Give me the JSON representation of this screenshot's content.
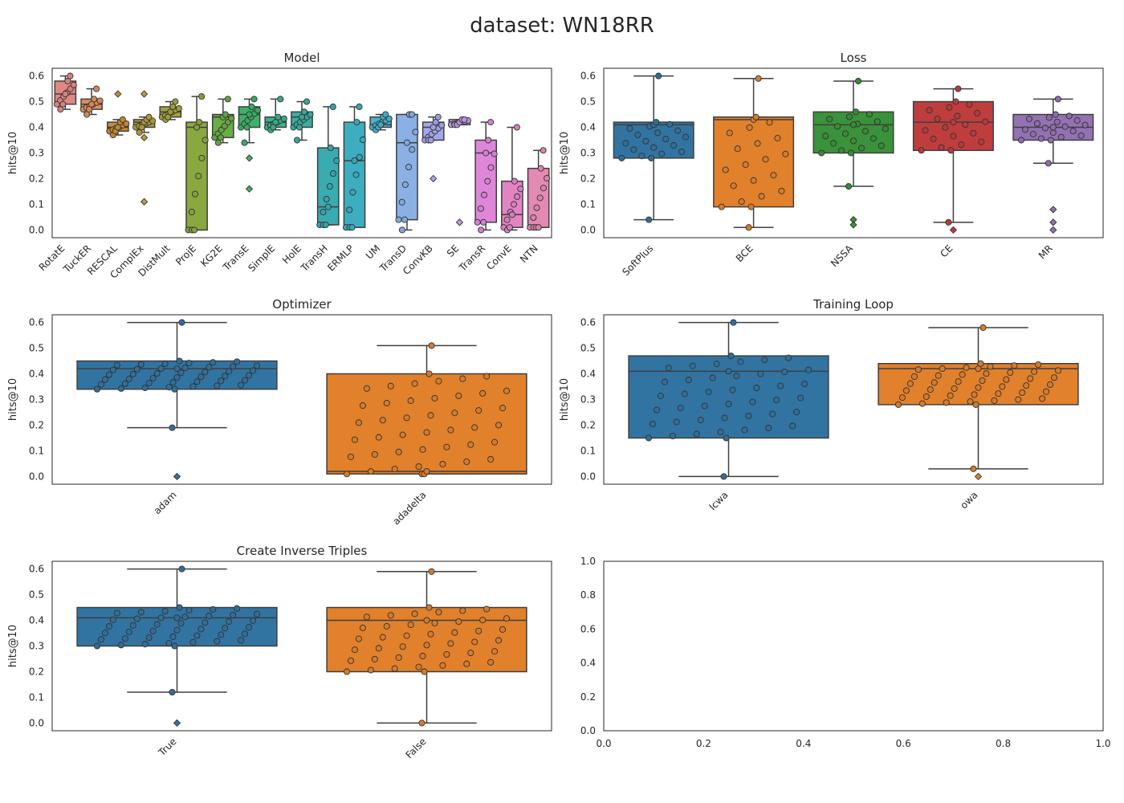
{
  "figure": {
    "title": "dataset: WN18RR"
  },
  "chart_data": [
    {
      "type": "box",
      "title": "Model",
      "ylabel": "hits@10",
      "ylim": [
        -0.03,
        0.63
      ],
      "yticks": [
        "0.0",
        "0.1",
        "0.2",
        "0.3",
        "0.4",
        "0.5",
        "0.6"
      ],
      "categories": [
        "RotatE",
        "TuckER",
        "RESCAL",
        "ComplEx",
        "DistMult",
        "ProjE",
        "KG2E",
        "TransE",
        "SimplE",
        "HolE",
        "TransH",
        "ERMLP",
        "UM",
        "TransD",
        "ConvKB",
        "SE",
        "TransR",
        "ConvE",
        "NTN"
      ],
      "colors": [
        "#e08883",
        "#e08e5e",
        "#c98c33",
        "#b49d3d",
        "#a4a33b",
        "#8ba840",
        "#6aac45",
        "#3db16a",
        "#3bb190",
        "#3aaea2",
        "#3aabb1",
        "#3caec0",
        "#48b3cf",
        "#8ab0e6",
        "#a4a6ec",
        "#be9ae6",
        "#df86db",
        "#e284c4",
        "#e38ab2"
      ],
      "boxes": [
        {
          "min": 0.47,
          "q1": 0.49,
          "median": 0.53,
          "q3": 0.58,
          "max": 0.6
        },
        {
          "min": 0.45,
          "q1": 0.47,
          "median": 0.49,
          "q3": 0.51,
          "max": 0.55
        },
        {
          "min": 0.37,
          "q1": 0.385,
          "median": 0.4,
          "q3": 0.42,
          "max": 0.43
        },
        {
          "min": 0.38,
          "q1": 0.4,
          "median": 0.42,
          "q3": 0.43,
          "max": 0.44
        },
        {
          "min": 0.43,
          "q1": 0.44,
          "median": 0.46,
          "q3": 0.48,
          "max": 0.5
        },
        {
          "min": 0.0,
          "q1": 0.0,
          "median": 0.4,
          "q3": 0.42,
          "max": 0.52
        },
        {
          "min": 0.34,
          "q1": 0.36,
          "median": 0.44,
          "q3": 0.45,
          "max": 0.51
        },
        {
          "min": 0.34,
          "q1": 0.4,
          "median": 0.45,
          "q3": 0.48,
          "max": 0.51
        },
        {
          "min": 0.39,
          "q1": 0.4,
          "median": 0.42,
          "q3": 0.44,
          "max": 0.51
        },
        {
          "min": 0.35,
          "q1": 0.4,
          "median": 0.44,
          "q3": 0.46,
          "max": 0.5
        },
        {
          "min": 0.02,
          "q1": 0.02,
          "median": 0.09,
          "q3": 0.32,
          "max": 0.48
        },
        {
          "min": 0.01,
          "q1": 0.01,
          "median": 0.27,
          "q3": 0.42,
          "max": 0.48
        },
        {
          "min": 0.39,
          "q1": 0.4,
          "median": 0.41,
          "q3": 0.44,
          "max": 0.45
        },
        {
          "min": 0.0,
          "q1": 0.04,
          "median": 0.34,
          "q3": 0.45,
          "max": 0.45
        },
        {
          "min": 0.35,
          "q1": 0.35,
          "median": 0.4,
          "q3": 0.42,
          "max": 0.44
        },
        {
          "min": 0.41,
          "q1": 0.41,
          "median": 0.42,
          "q3": 0.43,
          "max": 0.43
        },
        {
          "min": 0.0,
          "q1": 0.03,
          "median": 0.3,
          "q3": 0.35,
          "max": 0.42
        },
        {
          "min": 0.0,
          "q1": 0.01,
          "median": 0.06,
          "q3": 0.19,
          "max": 0.4
        },
        {
          "min": 0.01,
          "q1": 0.01,
          "median": 0.01,
          "q3": 0.24,
          "max": 0.31
        }
      ],
      "outliers": [
        [],
        [],
        [
          0.53
        ],
        [
          0.53,
          0.36,
          0.11
        ],
        [],
        [],
        [],
        [
          0.28,
          0.16
        ],
        [],
        [],
        [],
        [],
        [],
        [],
        [
          0.2
        ],
        [
          0.03
        ],
        [],
        [],
        []
      ]
    },
    {
      "type": "box",
      "title": "Loss",
      "ylabel": "hits@10",
      "ylim": [
        -0.03,
        0.63
      ],
      "yticks": [
        "0.0",
        "0.1",
        "0.2",
        "0.3",
        "0.4",
        "0.5",
        "0.6"
      ],
      "categories": [
        "SoftPlus",
        "BCE",
        "NSSA",
        "CE",
        "MR"
      ],
      "colors": [
        "#3274a1",
        "#e1812c",
        "#3a923a",
        "#c03d3e",
        "#9372b2"
      ],
      "boxes": [
        {
          "min": 0.04,
          "q1": 0.28,
          "median": 0.41,
          "q3": 0.42,
          "max": 0.6
        },
        {
          "min": 0.01,
          "q1": 0.09,
          "median": 0.43,
          "q3": 0.44,
          "max": 0.59
        },
        {
          "min": 0.17,
          "q1": 0.3,
          "median": 0.41,
          "q3": 0.46,
          "max": 0.58
        },
        {
          "min": 0.03,
          "q1": 0.31,
          "median": 0.42,
          "q3": 0.5,
          "max": 0.55
        },
        {
          "min": 0.26,
          "q1": 0.35,
          "median": 0.4,
          "q3": 0.45,
          "max": 0.51
        }
      ],
      "outliers": [
        [],
        [],
        [
          0.04,
          0.02
        ],
        [
          0.0
        ],
        [
          0.08,
          0.03,
          0.0
        ]
      ]
    },
    {
      "type": "box",
      "title": "Optimizer",
      "ylabel": "hits@10",
      "ylim": [
        -0.03,
        0.63
      ],
      "yticks": [
        "0.0",
        "0.1",
        "0.2",
        "0.3",
        "0.4",
        "0.5",
        "0.6"
      ],
      "categories": [
        "adam",
        "adadelta"
      ],
      "colors": [
        "#3274a1",
        "#e1812c"
      ],
      "boxes": [
        {
          "min": 0.19,
          "q1": 0.34,
          "median": 0.42,
          "q3": 0.45,
          "max": 0.6
        },
        {
          "min": 0.01,
          "q1": 0.01,
          "median": 0.02,
          "q3": 0.4,
          "max": 0.51
        }
      ],
      "outliers": [
        [
          0.0
        ],
        []
      ]
    },
    {
      "type": "box",
      "title": "Training Loop",
      "ylabel": "hits@10",
      "ylim": [
        -0.03,
        0.63
      ],
      "yticks": [
        "0.0",
        "0.1",
        "0.2",
        "0.3",
        "0.4",
        "0.5",
        "0.6"
      ],
      "categories": [
        "lcwa",
        "owa"
      ],
      "colors": [
        "#3274a1",
        "#e1812c"
      ],
      "boxes": [
        {
          "min": 0.0,
          "q1": 0.15,
          "median": 0.41,
          "q3": 0.47,
          "max": 0.6
        },
        {
          "min": 0.03,
          "q1": 0.28,
          "median": 0.42,
          "q3": 0.44,
          "max": 0.58
        }
      ],
      "outliers": [
        [],
        [
          0.0
        ]
      ]
    },
    {
      "type": "box",
      "title": "Create Inverse Triples",
      "ylabel": "hits@10",
      "ylim": [
        -0.03,
        0.63
      ],
      "yticks": [
        "0.0",
        "0.1",
        "0.2",
        "0.3",
        "0.4",
        "0.5",
        "0.6"
      ],
      "categories": [
        "True",
        "False"
      ],
      "colors": [
        "#3274a1",
        "#e1812c"
      ],
      "boxes": [
        {
          "min": 0.12,
          "q1": 0.3,
          "median": 0.41,
          "q3": 0.45,
          "max": 0.6
        },
        {
          "min": 0.0,
          "q1": 0.2,
          "median": 0.4,
          "q3": 0.45,
          "max": 0.59
        }
      ],
      "outliers": [
        [
          0.0
        ],
        []
      ]
    },
    {
      "type": "empty",
      "xlim": [
        0.0,
        1.0
      ],
      "ylim": [
        0.0,
        1.0
      ],
      "xticks": [
        "0.0",
        "0.2",
        "0.4",
        "0.6",
        "0.8",
        "1.0"
      ],
      "yticks": [
        "0.0",
        "0.2",
        "0.4",
        "0.6",
        "0.8",
        "1.0"
      ]
    }
  ]
}
